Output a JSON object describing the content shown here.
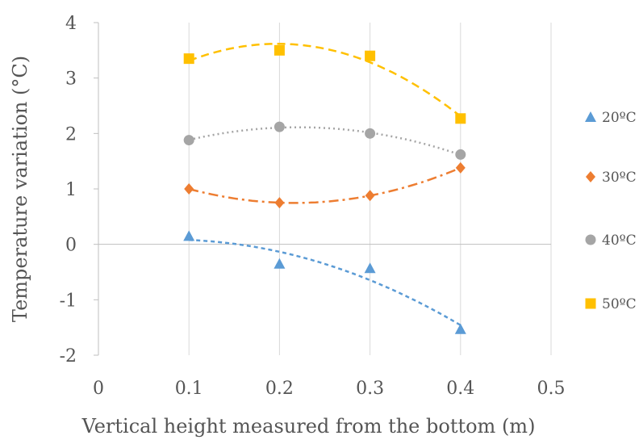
{
  "chart_data": {
    "type": "scatter",
    "xlabel": "Vertical height measured from the bottom (m)",
    "ylabel": "Temperature variation (°C)",
    "xlim": [
      0,
      0.5
    ],
    "ylim": [
      -2,
      4
    ],
    "xticks": [
      "0",
      "0.1",
      "0.2",
      "0.3",
      "0.4",
      "0.5"
    ],
    "yticks": [
      "-2",
      "-1",
      "0",
      "1",
      "2",
      "3",
      "4"
    ],
    "grid": "vertical",
    "legend_position": "right",
    "x": [
      0.1,
      0.2,
      0.3,
      0.4
    ],
    "series": [
      {
        "name": "20ºC",
        "marker": "triangle",
        "color": "#5b9bd5",
        "trend_dash": "short-dash",
        "values": [
          0.15,
          -0.35,
          -0.43,
          -1.53
        ]
      },
      {
        "name": "30ºC",
        "marker": "diamond",
        "color": "#ed7d31",
        "trend_dash": "dash-dot",
        "values": [
          1.0,
          0.75,
          0.88,
          1.38
        ]
      },
      {
        "name": "40ºC",
        "marker": "circle",
        "color": "#a5a5a5",
        "trend_dash": "dotted",
        "values": [
          1.88,
          2.12,
          2.0,
          1.62
        ]
      },
      {
        "name": "50ºC",
        "marker": "square",
        "color": "#ffc000",
        "trend_dash": "long-dash",
        "values": [
          3.35,
          3.5,
          3.4,
          2.27
        ]
      }
    ]
  }
}
